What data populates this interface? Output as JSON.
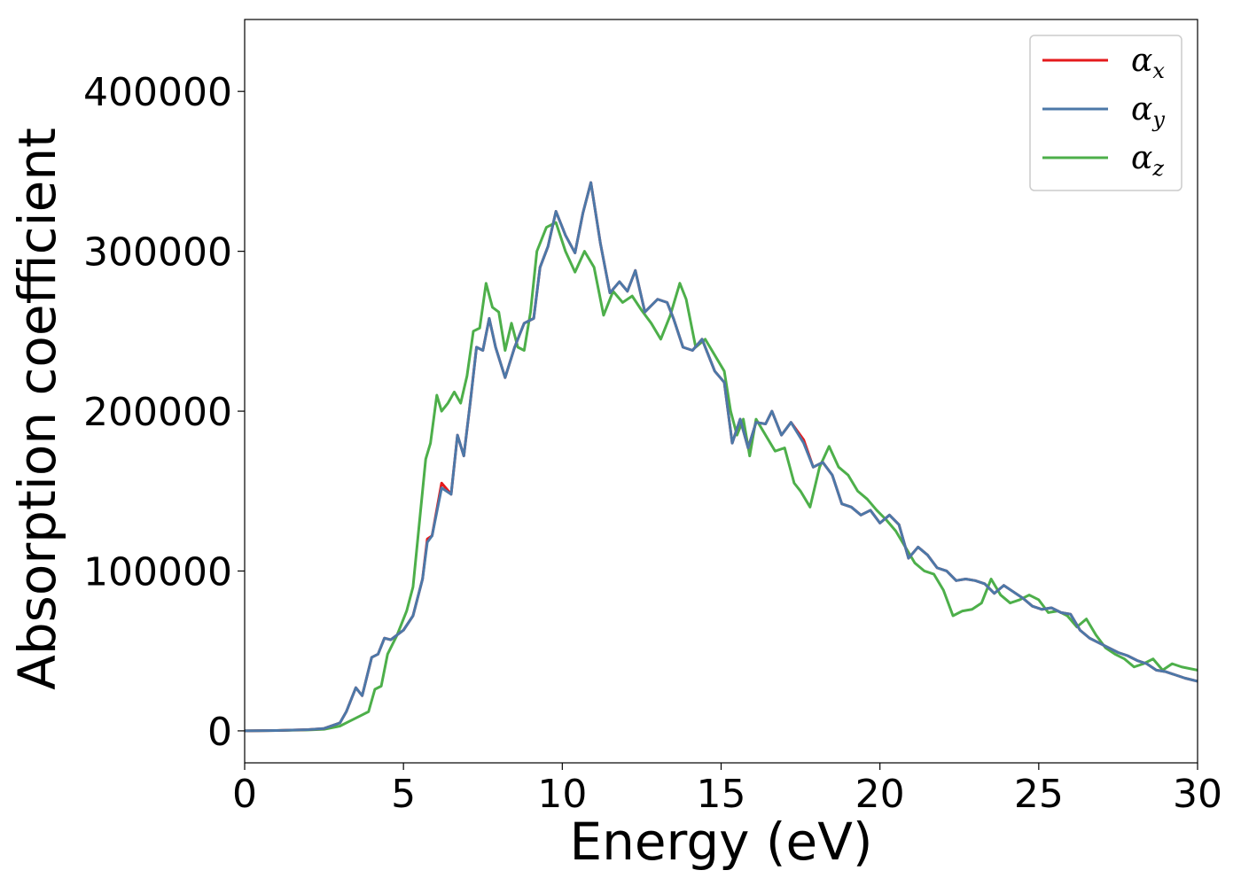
{
  "chart_data": {
    "type": "line",
    "title": "",
    "xlabel": "Energy (eV)",
    "ylabel": "Absorption coefficient",
    "xlim": [
      0,
      30
    ],
    "ylim": [
      -20000,
      445000
    ],
    "xticks": [
      0,
      5,
      10,
      15,
      20,
      25,
      30
    ],
    "yticks": [
      0,
      100000,
      200000,
      300000,
      400000
    ],
    "grid": false,
    "legend_position": "top-right",
    "series": [
      {
        "name": "α",
        "subscript": "x",
        "color": "#e41a1c",
        "x": [
          0,
          1,
          2,
          2.5,
          3,
          3.2,
          3.5,
          3.7,
          4,
          4.2,
          4.4,
          4.6,
          5,
          5.3,
          5.6,
          5.75,
          5.9,
          6.2,
          6.5,
          6.7,
          6.9,
          7.1,
          7.3,
          7.5,
          7.7,
          7.9,
          8.2,
          8.5,
          8.8,
          9.1,
          9.3,
          9.55,
          9.8,
          10.1,
          10.4,
          10.65,
          10.9,
          11.2,
          11.5,
          11.8,
          12.05,
          12.3,
          12.6,
          13,
          13.3,
          13.5,
          13.8,
          14.1,
          14.4,
          14.8,
          15.1,
          15.35,
          15.6,
          15.85,
          16.1,
          16.4,
          16.6,
          16.9,
          17.2,
          17.6,
          17.9,
          18.2,
          18.5,
          18.8,
          19.1,
          19.4,
          19.7,
          20,
          20.3,
          20.6,
          20.9,
          21.2,
          21.5,
          21.8,
          22.1,
          22.4,
          22.7,
          23,
          23.3,
          23.6,
          23.9,
          24.2,
          24.5,
          24.8,
          25.1,
          25.4,
          25.7,
          26,
          26.3,
          26.6,
          26.9,
          27.2,
          27.5,
          27.8,
          28.1,
          28.4,
          28.7,
          29,
          29.3,
          29.6,
          30
        ],
        "y": [
          0,
          200,
          800,
          1500,
          5000,
          12000,
          27000,
          22000,
          46000,
          48000,
          58000,
          57000,
          63000,
          72000,
          95000,
          120000,
          122000,
          155000,
          148000,
          185000,
          172000,
          205000,
          240000,
          238000,
          258000,
          240000,
          221000,
          240000,
          255000,
          258000,
          290000,
          303000,
          325000,
          310000,
          299000,
          324000,
          343000,
          305000,
          274000,
          281000,
          275000,
          288000,
          262000,
          270000,
          268000,
          258000,
          240000,
          238000,
          245000,
          225000,
          218000,
          180000,
          195000,
          177000,
          193000,
          192000,
          200000,
          185000,
          193000,
          182000,
          165000,
          168000,
          160000,
          142000,
          140000,
          135000,
          138000,
          130000,
          135000,
          129000,
          108000,
          115000,
          110000,
          102000,
          100000,
          94000,
          95000,
          94000,
          92000,
          86000,
          91000,
          87000,
          83000,
          78000,
          76000,
          77000,
          74000,
          73000,
          63000,
          58000,
          55000,
          52000,
          49000,
          47000,
          44000,
          42000,
          38000,
          37000,
          35000,
          33000,
          31000
        ]
      },
      {
        "name": "α",
        "subscript": "y",
        "color": "#4c78a8",
        "x": [
          0,
          1,
          2,
          2.5,
          3,
          3.2,
          3.5,
          3.7,
          4,
          4.2,
          4.4,
          4.6,
          5,
          5.3,
          5.6,
          5.75,
          5.9,
          6.2,
          6.5,
          6.7,
          6.9,
          7.1,
          7.3,
          7.5,
          7.7,
          7.9,
          8.2,
          8.5,
          8.8,
          9.1,
          9.3,
          9.55,
          9.8,
          10.1,
          10.4,
          10.65,
          10.9,
          11.2,
          11.5,
          11.8,
          12.05,
          12.3,
          12.6,
          13,
          13.3,
          13.5,
          13.8,
          14.1,
          14.4,
          14.8,
          15.1,
          15.35,
          15.6,
          15.85,
          16.1,
          16.4,
          16.6,
          16.9,
          17.2,
          17.6,
          17.9,
          18.2,
          18.5,
          18.8,
          19.1,
          19.4,
          19.7,
          20,
          20.3,
          20.6,
          20.9,
          21.2,
          21.5,
          21.8,
          22.1,
          22.4,
          22.7,
          23,
          23.3,
          23.6,
          23.9,
          24.2,
          24.5,
          24.8,
          25.1,
          25.4,
          25.7,
          26,
          26.3,
          26.6,
          26.9,
          27.2,
          27.5,
          27.8,
          28.1,
          28.4,
          28.7,
          29,
          29.3,
          29.6,
          30
        ],
        "y": [
          0,
          200,
          800,
          1500,
          5000,
          12000,
          27000,
          22000,
          46000,
          48000,
          58000,
          57000,
          63000,
          72000,
          95000,
          118000,
          122000,
          152000,
          148000,
          185000,
          172000,
          205000,
          240000,
          238000,
          258000,
          240000,
          221000,
          240000,
          255000,
          258000,
          290000,
          303000,
          325000,
          310000,
          299000,
          324000,
          343000,
          305000,
          274000,
          281000,
          275000,
          288000,
          262000,
          270000,
          268000,
          258000,
          240000,
          238000,
          245000,
          225000,
          218000,
          180000,
          195000,
          177000,
          193000,
          192000,
          200000,
          185000,
          193000,
          180000,
          165000,
          168000,
          160000,
          142000,
          140000,
          135000,
          138000,
          130000,
          135000,
          129000,
          108000,
          115000,
          110000,
          102000,
          100000,
          94000,
          95000,
          94000,
          92000,
          86000,
          91000,
          87000,
          83000,
          78000,
          76000,
          77000,
          74000,
          73000,
          63000,
          58000,
          55000,
          52000,
          49000,
          47000,
          44000,
          42000,
          38000,
          37000,
          35000,
          33000,
          31000
        ]
      },
      {
        "name": "α",
        "subscript": "z",
        "color": "#4daf4a",
        "x": [
          0,
          1,
          2,
          2.5,
          3,
          3.3,
          3.6,
          3.9,
          4.1,
          4.3,
          4.5,
          4.8,
          5.1,
          5.3,
          5.5,
          5.7,
          5.85,
          6.05,
          6.2,
          6.4,
          6.6,
          6.8,
          7,
          7.2,
          7.4,
          7.6,
          7.8,
          8,
          8.2,
          8.4,
          8.6,
          8.8,
          9,
          9.2,
          9.5,
          9.8,
          10.1,
          10.4,
          10.7,
          11,
          11.3,
          11.6,
          11.9,
          12.2,
          12.5,
          12.8,
          13.1,
          13.4,
          13.7,
          13.9,
          14.2,
          14.5,
          14.8,
          15.1,
          15.3,
          15.5,
          15.7,
          15.9,
          16.1,
          16.4,
          16.7,
          17,
          17.3,
          17.5,
          17.8,
          18.1,
          18.4,
          18.7,
          19,
          19.3,
          19.6,
          19.9,
          20.2,
          20.5,
          20.8,
          21.1,
          21.4,
          21.7,
          22,
          22.3,
          22.6,
          22.9,
          23.2,
          23.5,
          23.8,
          24.1,
          24.4,
          24.7,
          25,
          25.3,
          25.6,
          25.9,
          26.2,
          26.5,
          26.8,
          27.1,
          27.4,
          27.7,
          28,
          28.3,
          28.6,
          28.9,
          29.2,
          29.5,
          30
        ],
        "y": [
          0,
          200,
          600,
          1000,
          3000,
          6000,
          9000,
          12000,
          26000,
          28000,
          48000,
          60000,
          75000,
          90000,
          130000,
          170000,
          180000,
          210000,
          200000,
          205000,
          212000,
          205000,
          222000,
          250000,
          252000,
          280000,
          265000,
          262000,
          238000,
          255000,
          240000,
          238000,
          262000,
          300000,
          315000,
          318000,
          300000,
          287000,
          300000,
          290000,
          260000,
          275000,
          268000,
          272000,
          263000,
          255000,
          245000,
          260000,
          280000,
          270000,
          240000,
          245000,
          235000,
          225000,
          200000,
          185000,
          195000,
          172000,
          195000,
          185000,
          175000,
          177000,
          155000,
          150000,
          140000,
          165000,
          178000,
          165000,
          160000,
          150000,
          145000,
          138000,
          132000,
          125000,
          115000,
          105000,
          100000,
          98000,
          88000,
          72000,
          75000,
          76000,
          80000,
          95000,
          85000,
          80000,
          82000,
          85000,
          82000,
          74000,
          75000,
          72000,
          65000,
          70000,
          60000,
          52000,
          48000,
          45000,
          40000,
          42000,
          45000,
          38000,
          42000,
          40000,
          38000
        ]
      }
    ]
  }
}
